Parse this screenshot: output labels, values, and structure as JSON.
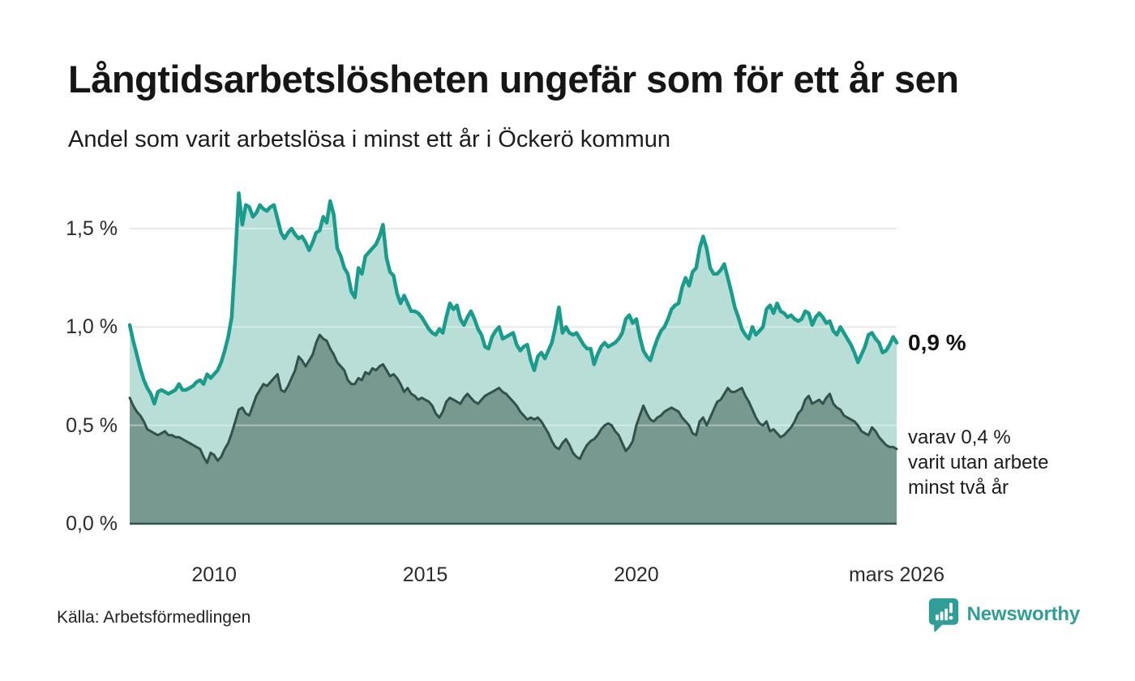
{
  "title": "Långtidsarbetslösheten ungefär som för ett år sen",
  "subtitle": "Andel som varit arbetslösa i minst ett år i Öckerö kommun",
  "source": "Källa: Arbetsförmedlingen",
  "logo": {
    "text": "Newsworthy",
    "icon": "newsworthy-bars-icon",
    "color": "#2f9e96"
  },
  "annotations": {
    "primary": "0,9 %",
    "secondary_lines": [
      "varav 0,4 %",
      "varit utan arbete",
      "minst två år"
    ]
  },
  "colors": {
    "series1_line": "#1a9c8c",
    "series1_fill": "#b8ded7",
    "series2_line": "#33514b",
    "series2_fill": "#77998f",
    "gridline": "#dcdcdc",
    "baseline": "#35514b",
    "text": "#161616"
  },
  "chart_data": {
    "type": "area",
    "title": "Andel som varit arbetslösa i minst ett år i Öckerö kommun",
    "xlabel": "",
    "ylabel": "",
    "x_start_year": 2008,
    "x_step_months": 1,
    "xlim": [
      2008,
      2026.1667
    ],
    "ylim": [
      0,
      1.75
    ],
    "grid": true,
    "legend_position": "right-annotations",
    "y_ticks": [
      {
        "label": "0,0 %",
        "value": 0
      },
      {
        "label": "0,5 %",
        "value": 0.5
      },
      {
        "label": "1,0 %",
        "value": 1.0
      },
      {
        "label": "1,5 %",
        "value": 1.5
      }
    ],
    "x_ticks": [
      {
        "label": "2010",
        "year": 2010
      },
      {
        "label": "2015",
        "year": 2015
      },
      {
        "label": "2020",
        "year": 2020
      },
      {
        "label": "mars 2026",
        "year": 2026.1667
      }
    ],
    "series": [
      {
        "name": "Andel arbetslösa minst ett år",
        "end_value_label": "0,9 %",
        "line_color": "#1a9c8c",
        "fill_color": "#b8ded7",
        "values": [
          1.01,
          0.93,
          0.86,
          0.79,
          0.73,
          0.69,
          0.66,
          0.61,
          0.67,
          0.68,
          0.67,
          0.66,
          0.67,
          0.68,
          0.71,
          0.68,
          0.68,
          0.69,
          0.7,
          0.72,
          0.73,
          0.71,
          0.76,
          0.74,
          0.76,
          0.78,
          0.82,
          0.88,
          0.95,
          1.05,
          1.35,
          1.68,
          1.52,
          1.62,
          1.61,
          1.56,
          1.58,
          1.62,
          1.6,
          1.59,
          1.61,
          1.62,
          1.55,
          1.48,
          1.45,
          1.48,
          1.5,
          1.47,
          1.45,
          1.46,
          1.43,
          1.39,
          1.43,
          1.48,
          1.49,
          1.56,
          1.53,
          1.64,
          1.57,
          1.4,
          1.36,
          1.3,
          1.27,
          1.18,
          1.15,
          1.3,
          1.27,
          1.36,
          1.38,
          1.4,
          1.42,
          1.46,
          1.52,
          1.35,
          1.28,
          1.26,
          1.17,
          1.12,
          1.16,
          1.12,
          1.08,
          1.08,
          1.07,
          1.05,
          1.02,
          0.99,
          0.97,
          0.96,
          0.99,
          0.97,
          1.05,
          1.12,
          1.09,
          1.11,
          1.04,
          1.01,
          1.05,
          1.08,
          1.04,
          0.99,
          0.96,
          0.9,
          0.89,
          0.95,
          0.98,
          1.0,
          0.94,
          0.95,
          0.96,
          0.97,
          0.91,
          0.88,
          0.9,
          0.91,
          0.83,
          0.78,
          0.85,
          0.87,
          0.84,
          0.88,
          0.92,
          1.0,
          1.1,
          0.97,
          1.0,
          0.97,
          0.96,
          0.97,
          0.94,
          0.91,
          0.89,
          0.89,
          0.81,
          0.86,
          0.9,
          0.92,
          0.9,
          0.91,
          0.92,
          0.94,
          0.97,
          1.04,
          1.06,
          1.02,
          1.04,
          0.95,
          0.88,
          0.85,
          0.83,
          0.89,
          0.94,
          0.98,
          1.0,
          1.04,
          1.09,
          1.11,
          1.12,
          1.2,
          1.25,
          1.21,
          1.28,
          1.3,
          1.4,
          1.46,
          1.4,
          1.3,
          1.27,
          1.27,
          1.29,
          1.32,
          1.25,
          1.18,
          1.1,
          1.05,
          0.99,
          0.96,
          0.94,
          1.0,
          0.96,
          0.98,
          1.0,
          1.09,
          1.11,
          1.07,
          1.12,
          1.08,
          1.07,
          1.05,
          1.06,
          1.04,
          1.03,
          1.04,
          1.08,
          1.07,
          1.01,
          1.05,
          1.07,
          1.05,
          1.02,
          1.03,
          0.98,
          0.96,
          1.0,
          0.97,
          0.94,
          0.91,
          0.87,
          0.82,
          0.86,
          0.9,
          0.96,
          0.97,
          0.94,
          0.92,
          0.87,
          0.88,
          0.91,
          0.95,
          0.92
        ]
      },
      {
        "name": "varav utan arbete minst två år",
        "end_value_label": "0,4 %",
        "line_color": "#33514b",
        "fill_color": "#77998f",
        "values": [
          0.64,
          0.6,
          0.57,
          0.55,
          0.52,
          0.48,
          0.47,
          0.46,
          0.45,
          0.46,
          0.47,
          0.45,
          0.45,
          0.44,
          0.44,
          0.43,
          0.42,
          0.41,
          0.4,
          0.39,
          0.38,
          0.34,
          0.31,
          0.36,
          0.35,
          0.32,
          0.34,
          0.38,
          0.41,
          0.46,
          0.52,
          0.58,
          0.59,
          0.56,
          0.55,
          0.6,
          0.65,
          0.68,
          0.71,
          0.7,
          0.72,
          0.74,
          0.76,
          0.68,
          0.67,
          0.7,
          0.74,
          0.78,
          0.85,
          0.83,
          0.8,
          0.83,
          0.86,
          0.92,
          0.96,
          0.94,
          0.93,
          0.89,
          0.86,
          0.82,
          0.8,
          0.78,
          0.73,
          0.71,
          0.71,
          0.74,
          0.73,
          0.77,
          0.76,
          0.79,
          0.78,
          0.8,
          0.81,
          0.78,
          0.75,
          0.76,
          0.74,
          0.71,
          0.67,
          0.69,
          0.66,
          0.65,
          0.63,
          0.64,
          0.63,
          0.62,
          0.6,
          0.56,
          0.54,
          0.57,
          0.62,
          0.64,
          0.63,
          0.62,
          0.61,
          0.64,
          0.66,
          0.64,
          0.62,
          0.61,
          0.63,
          0.65,
          0.66,
          0.67,
          0.68,
          0.69,
          0.67,
          0.66,
          0.64,
          0.62,
          0.6,
          0.57,
          0.55,
          0.53,
          0.54,
          0.53,
          0.54,
          0.52,
          0.49,
          0.46,
          0.42,
          0.39,
          0.38,
          0.41,
          0.43,
          0.4,
          0.36,
          0.34,
          0.33,
          0.37,
          0.4,
          0.42,
          0.43,
          0.45,
          0.48,
          0.5,
          0.51,
          0.5,
          0.47,
          0.45,
          0.41,
          0.37,
          0.39,
          0.42,
          0.5,
          0.55,
          0.6,
          0.56,
          0.53,
          0.52,
          0.54,
          0.55,
          0.57,
          0.58,
          0.59,
          0.58,
          0.57,
          0.54,
          0.52,
          0.5,
          0.46,
          0.45,
          0.52,
          0.54,
          0.5,
          0.54,
          0.58,
          0.62,
          0.63,
          0.66,
          0.69,
          0.67,
          0.67,
          0.68,
          0.69,
          0.65,
          0.62,
          0.58,
          0.54,
          0.51,
          0.5,
          0.52,
          0.47,
          0.48,
          0.46,
          0.44,
          0.45,
          0.47,
          0.49,
          0.52,
          0.56,
          0.58,
          0.63,
          0.65,
          0.61,
          0.62,
          0.63,
          0.61,
          0.64,
          0.66,
          0.61,
          0.59,
          0.58,
          0.55,
          0.54,
          0.53,
          0.52,
          0.5,
          0.47,
          0.46,
          0.45,
          0.49,
          0.47,
          0.44,
          0.42,
          0.4,
          0.39,
          0.39,
          0.38
        ]
      }
    ]
  }
}
